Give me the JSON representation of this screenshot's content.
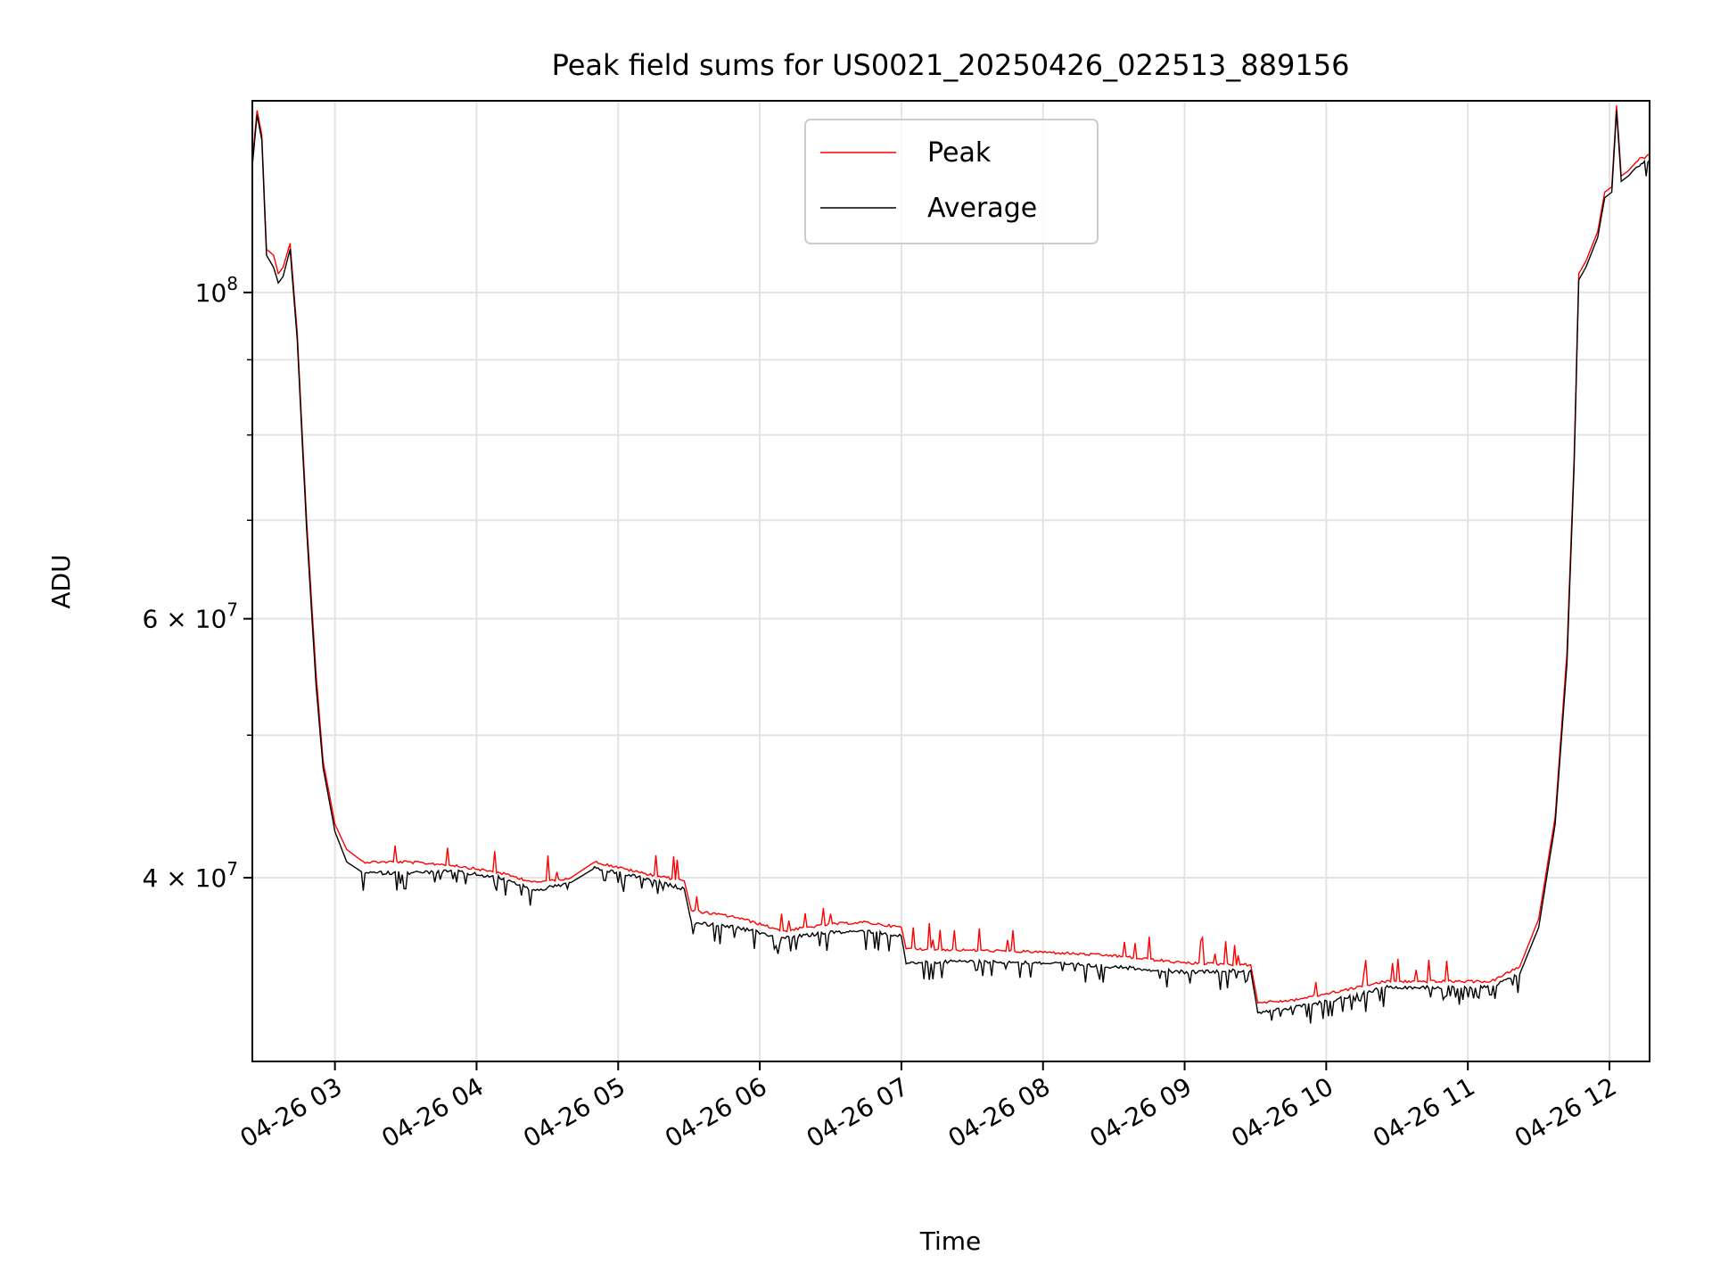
{
  "chart_data": {
    "type": "line",
    "title": "Peak field sums for US0021_20250426_022513_889156",
    "xlabel": "Time",
    "ylabel": "ADU",
    "y_scale": "log",
    "x_range": [
      "2025-04-26 02:25",
      "2025-04-26 12:17"
    ],
    "ylim": [
      30000000,
      135000000
    ],
    "x_ticks": [
      {
        "t": "2025-04-26 03:00",
        "label": "04-26 03"
      },
      {
        "t": "2025-04-26 04:00",
        "label": "04-26 04"
      },
      {
        "t": "2025-04-26 05:00",
        "label": "04-26 05"
      },
      {
        "t": "2025-04-26 06:00",
        "label": "04-26 06"
      },
      {
        "t": "2025-04-26 07:00",
        "label": "04-26 07"
      },
      {
        "t": "2025-04-26 08:00",
        "label": "04-26 08"
      },
      {
        "t": "2025-04-26 09:00",
        "label": "04-26 09"
      },
      {
        "t": "2025-04-26 10:00",
        "label": "04-26 10"
      },
      {
        "t": "2025-04-26 11:00",
        "label": "04-26 11"
      },
      {
        "t": "2025-04-26 12:00",
        "label": "04-26 12"
      }
    ],
    "y_major_ticks": [
      {
        "value": 40000000,
        "base": "4 × 10",
        "exp": "7"
      },
      {
        "value": 60000000,
        "base": "6 × 10",
        "exp": "7"
      },
      {
        "value": 100000000,
        "base": "10",
        "exp": "8"
      }
    ],
    "y_minor_ticks": [
      50000000,
      70000000,
      80000000,
      90000000
    ],
    "grid": true,
    "legend_position": "top-center",
    "series": [
      {
        "name": "Peak",
        "color": "#ff0000",
        "points": [
          [
            "2025-04-26 02:25",
            123000000
          ],
          [
            "2025-04-26 02:27",
            133000000
          ],
          [
            "2025-04-26 02:29",
            128000000
          ],
          [
            "2025-04-26 02:31",
            107000000
          ],
          [
            "2025-04-26 02:34",
            106000000
          ],
          [
            "2025-04-26 02:36",
            103000000
          ],
          [
            "2025-04-26 02:38",
            104000000
          ],
          [
            "2025-04-26 02:41",
            108000000
          ],
          [
            "2025-04-26 02:44",
            94000000
          ],
          [
            "2025-04-26 02:48",
            70000000
          ],
          [
            "2025-04-26 02:52",
            55000000
          ],
          [
            "2025-04-26 02:55",
            48000000
          ],
          [
            "2025-04-26 03:00",
            43500000
          ],
          [
            "2025-04-26 03:05",
            41800000
          ],
          [
            "2025-04-26 03:12",
            41000000
          ],
          [
            "2025-04-26 03:30",
            41000000
          ],
          [
            "2025-04-26 03:50",
            40800000
          ],
          [
            "2025-04-26 04:10",
            40300000
          ],
          [
            "2025-04-26 04:25",
            39700000
          ],
          [
            "2025-04-26 04:40",
            40000000
          ],
          [
            "2025-04-26 04:50",
            41000000
          ],
          [
            "2025-04-26 05:10",
            40300000
          ],
          [
            "2025-04-26 05:28",
            39800000
          ],
          [
            "2025-04-26 05:31",
            38000000
          ],
          [
            "2025-04-26 05:50",
            37600000
          ],
          [
            "2025-04-26 06:10",
            36800000
          ],
          [
            "2025-04-26 06:30",
            37200000
          ],
          [
            "2025-04-26 06:45",
            37300000
          ],
          [
            "2025-04-26 07:00",
            37000000
          ],
          [
            "2025-04-26 07:02",
            35800000
          ],
          [
            "2025-04-26 07:30",
            35700000
          ],
          [
            "2025-04-26 08:00",
            35600000
          ],
          [
            "2025-04-26 08:30",
            35400000
          ],
          [
            "2025-04-26 09:00",
            35000000
          ],
          [
            "2025-04-26 09:28",
            34900000
          ],
          [
            "2025-04-26 09:31",
            32900000
          ],
          [
            "2025-04-26 09:45",
            33000000
          ],
          [
            "2025-04-26 10:10",
            33600000
          ],
          [
            "2025-04-26 10:25",
            34000000
          ],
          [
            "2025-04-26 10:45",
            34000000
          ],
          [
            "2025-04-26 11:10",
            34000000
          ],
          [
            "2025-04-26 11:22",
            34800000
          ],
          [
            "2025-04-26 11:30",
            37500000
          ],
          [
            "2025-04-26 11:37",
            44000000
          ],
          [
            "2025-04-26 11:42",
            57000000
          ],
          [
            "2025-04-26 11:45",
            77000000
          ],
          [
            "2025-04-26 11:47",
            103000000
          ],
          [
            "2025-04-26 11:50",
            105000000
          ],
          [
            "2025-04-26 11:55",
            110000000
          ],
          [
            "2025-04-26 11:58",
            117000000
          ],
          [
            "2025-04-26 12:01",
            118000000
          ],
          [
            "2025-04-26 12:03",
            134000000
          ],
          [
            "2025-04-26 12:05",
            120000000
          ],
          [
            "2025-04-26 12:08",
            121000000
          ],
          [
            "2025-04-26 12:12",
            123000000
          ],
          [
            "2025-04-26 12:17",
            124000000
          ]
        ]
      },
      {
        "name": "Average",
        "color": "#000000",
        "points": [
          [
            "2025-04-26 02:25",
            122000000
          ],
          [
            "2025-04-26 02:27",
            132000000
          ],
          [
            "2025-04-26 02:29",
            127000000
          ],
          [
            "2025-04-26 02:31",
            106000000
          ],
          [
            "2025-04-26 02:34",
            104000000
          ],
          [
            "2025-04-26 02:36",
            101500000
          ],
          [
            "2025-04-26 02:38",
            102500000
          ],
          [
            "2025-04-26 02:41",
            107000000
          ],
          [
            "2025-04-26 02:44",
            93000000
          ],
          [
            "2025-04-26 02:48",
            69000000
          ],
          [
            "2025-04-26 02:52",
            54000000
          ],
          [
            "2025-04-26 02:55",
            47500000
          ],
          [
            "2025-04-26 03:00",
            43000000
          ],
          [
            "2025-04-26 03:05",
            41000000
          ],
          [
            "2025-04-26 03:12",
            40300000
          ],
          [
            "2025-04-26 03:30",
            40300000
          ],
          [
            "2025-04-26 03:50",
            40400000
          ],
          [
            "2025-04-26 04:10",
            40000000
          ],
          [
            "2025-04-26 04:25",
            39200000
          ],
          [
            "2025-04-26 04:40",
            39700000
          ],
          [
            "2025-04-26 04:50",
            40600000
          ],
          [
            "2025-04-26 05:10",
            40000000
          ],
          [
            "2025-04-26 05:28",
            39300000
          ],
          [
            "2025-04-26 05:31",
            37300000
          ],
          [
            "2025-04-26 05:50",
            37000000
          ],
          [
            "2025-04-26 06:10",
            36400000
          ],
          [
            "2025-04-26 06:30",
            36700000
          ],
          [
            "2025-04-26 06:45",
            36800000
          ],
          [
            "2025-04-26 07:00",
            36500000
          ],
          [
            "2025-04-26 07:02",
            35000000
          ],
          [
            "2025-04-26 07:30",
            35100000
          ],
          [
            "2025-04-26 08:00",
            35000000
          ],
          [
            "2025-04-26 08:30",
            34800000
          ],
          [
            "2025-04-26 09:00",
            34500000
          ],
          [
            "2025-04-26 09:28",
            34600000
          ],
          [
            "2025-04-26 09:31",
            32400000
          ],
          [
            "2025-04-26 09:45",
            32600000
          ],
          [
            "2025-04-26 10:10",
            33200000
          ],
          [
            "2025-04-26 10:25",
            33700000
          ],
          [
            "2025-04-26 10:45",
            33700000
          ],
          [
            "2025-04-26 11:10",
            33700000
          ],
          [
            "2025-04-26 11:22",
            34400000
          ],
          [
            "2025-04-26 11:30",
            37000000
          ],
          [
            "2025-04-26 11:37",
            43500000
          ],
          [
            "2025-04-26 11:42",
            56000000
          ],
          [
            "2025-04-26 11:45",
            76000000
          ],
          [
            "2025-04-26 11:47",
            102000000
          ],
          [
            "2025-04-26 11:50",
            104000000
          ],
          [
            "2025-04-26 11:55",
            109000000
          ],
          [
            "2025-04-26 11:58",
            116000000
          ],
          [
            "2025-04-26 12:01",
            117000000
          ],
          [
            "2025-04-26 12:03",
            133000000
          ],
          [
            "2025-04-26 12:05",
            119000000
          ],
          [
            "2025-04-26 12:08",
            120000000
          ],
          [
            "2025-04-26 12:12",
            122000000
          ],
          [
            "2025-04-26 12:17",
            123000000
          ]
        ]
      }
    ]
  }
}
